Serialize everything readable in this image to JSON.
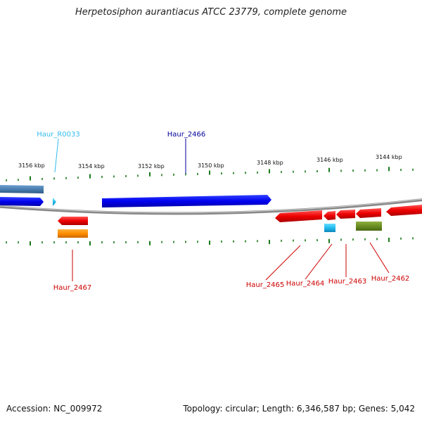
{
  "title": "Herpetosiphon aurantiacus ATCC 23779, complete genome",
  "footer": {
    "accession": "Accession: NC_009972",
    "summary": "Topology: circular; Length: 6,346,587 bp; Genes: 5,042"
  },
  "scale_labels": [
    "3156 kbp",
    "3154 kbp",
    "3152 kbp",
    "3150 kbp",
    "3148 kbp",
    "3146 kbp",
    "3144 kbp"
  ],
  "gene_labels": [
    {
      "text": "Haur_R0033",
      "color": "#33bbee"
    },
    {
      "text": "Haur_2466",
      "color": "#000099"
    },
    {
      "text": "Haur_2467",
      "color": "#cc0000"
    },
    {
      "text": "Haur_2465",
      "color": "#cc0000"
    },
    {
      "text": "Haur_2464",
      "color": "#cc0000"
    },
    {
      "text": "Haur_2463",
      "color": "#cc0000"
    },
    {
      "text": "Haur_2462",
      "color": "#cc0000"
    }
  ],
  "colors": {
    "forward_gene": "#0000ee",
    "reverse_gene": "#ee0000",
    "rna_gene": "#33ccee",
    "steelblue_gene": "#4a7fb0",
    "orange_gene": "#ff8c00",
    "olive_gene": "#6b8e23",
    "tick": "#1a7a1a",
    "backbone": "#888888"
  }
}
